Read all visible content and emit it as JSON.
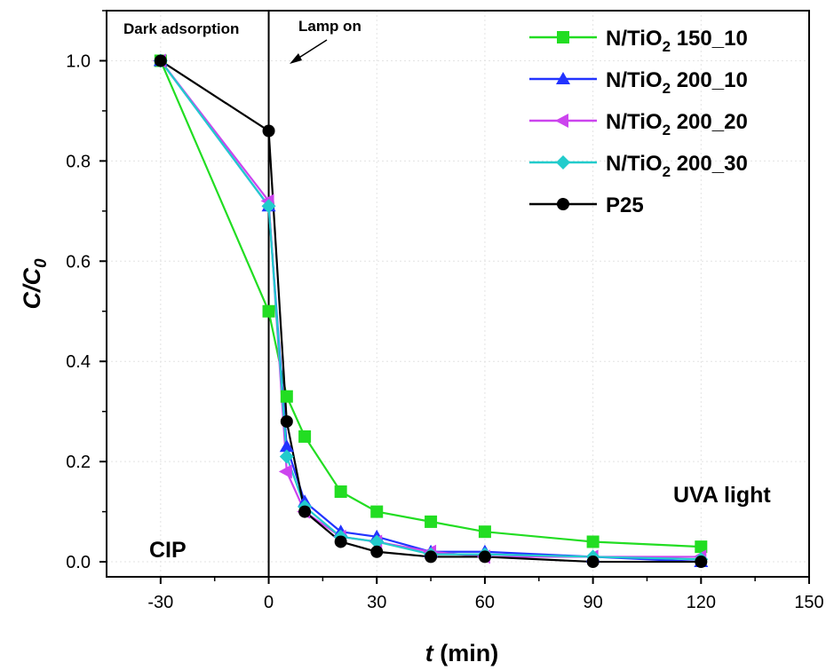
{
  "chart_data": {
    "type": "line",
    "xlabel_italic": "t",
    "xlabel_unit": "(min)",
    "ylabel_main": "C/C",
    "ylabel_sub": "0",
    "xlim": [
      -45,
      150
    ],
    "ylim": [
      -0.03,
      1.1
    ],
    "x_ticks": [
      -30,
      0,
      30,
      60,
      90,
      120,
      150
    ],
    "x_tick_labels": [
      "-30",
      "0",
      "30",
      "60",
      "90",
      "120",
      "150"
    ],
    "y_ticks": [
      0.0,
      0.2,
      0.4,
      0.6,
      0.8,
      1.0
    ],
    "y_tick_labels": [
      "0.0",
      "0.2",
      "0.4",
      "0.6",
      "0.8",
      "1.0"
    ],
    "grid": true,
    "legend_position": "top-right",
    "annotations": {
      "dark_label": "Dark adsorption",
      "lamp_label": "Lamp on",
      "light_label": "UVA light",
      "sample_label": "CIP"
    },
    "series": [
      {
        "name_main": "N/TiO",
        "name_sub": "2",
        "name_suffix": " 150_10",
        "color": "#22dd22",
        "marker": "square",
        "x": [
          -30,
          0,
          5,
          10,
          20,
          30,
          45,
          60,
          90,
          120
        ],
        "y": [
          1.0,
          0.5,
          0.33,
          0.25,
          0.14,
          0.1,
          0.08,
          0.06,
          0.04,
          0.03
        ]
      },
      {
        "name_main": "N/TiO",
        "name_sub": "2",
        "name_suffix": " 200_10",
        "color": "#2233ff",
        "marker": "triangle-up",
        "x": [
          -30,
          0,
          5,
          10,
          20,
          30,
          45,
          60,
          90,
          120
        ],
        "y": [
          1.0,
          0.71,
          0.23,
          0.12,
          0.06,
          0.05,
          0.02,
          0.02,
          0.01,
          0.0
        ]
      },
      {
        "name_main": "N/TiO",
        "name_sub": "2",
        "name_suffix": " 200_20",
        "color": "#cc44ee",
        "marker": "triangle-left",
        "x": [
          -30,
          0,
          5,
          10,
          20,
          30,
          45,
          60,
          90,
          120
        ],
        "y": [
          1.0,
          0.72,
          0.18,
          0.1,
          0.05,
          0.04,
          0.02,
          0.01,
          0.01,
          0.01
        ]
      },
      {
        "name_main": "N/TiO",
        "name_sub": "2",
        "name_suffix": " 200_30",
        "color": "#22cccc",
        "marker": "diamond",
        "x": [
          -30,
          0,
          5,
          10,
          20,
          30,
          45,
          60,
          90,
          120
        ],
        "y": [
          1.0,
          0.71,
          0.21,
          0.11,
          0.05,
          0.04,
          0.015,
          0.015,
          0.01,
          0.005
        ]
      },
      {
        "name_main": "P25",
        "name_sub": "",
        "name_suffix": "",
        "color": "#000000",
        "marker": "circle",
        "x": [
          -30,
          0,
          5,
          10,
          20,
          30,
          45,
          60,
          90,
          120
        ],
        "y": [
          1.0,
          0.86,
          0.28,
          0.1,
          0.04,
          0.02,
          0.01,
          0.01,
          0.0,
          0.0
        ]
      }
    ]
  }
}
